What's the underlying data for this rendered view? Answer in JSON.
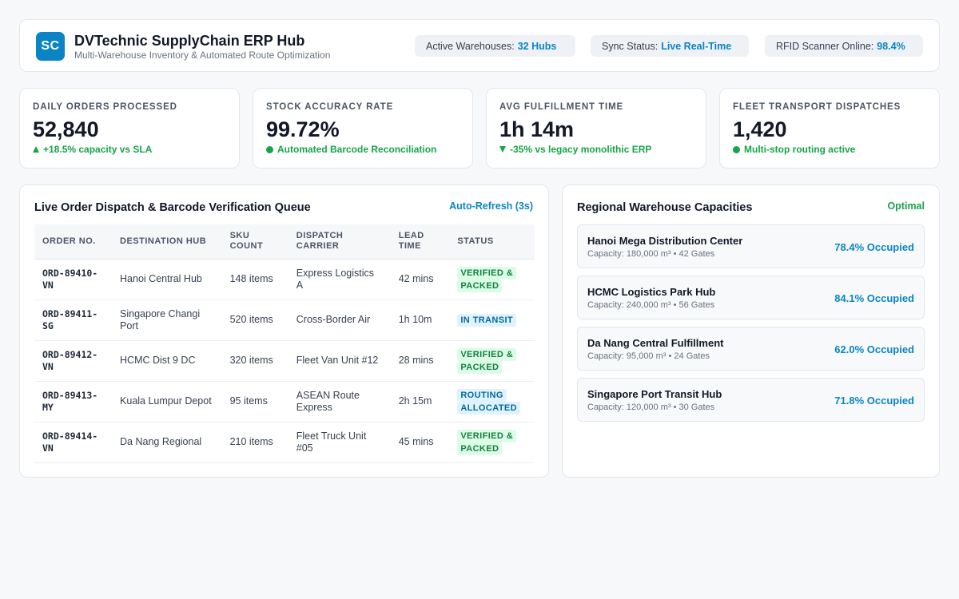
{
  "header": {
    "logo_text": "SC",
    "title": "DVTechnic SupplyChain ERP Hub",
    "subtitle": "Multi-Warehouse Inventory & Automated Route Optimization",
    "pills": [
      {
        "label": "Active Warehouses:",
        "value": "32 Hubs"
      },
      {
        "label": "Sync Status:",
        "value": "Live Real-Time"
      },
      {
        "label": "RFID Scanner Online:",
        "value": "98.4%"
      }
    ]
  },
  "kpis": [
    {
      "label": "Daily Orders Processed",
      "value": "52,840",
      "note": "+18.5% capacity vs SLA",
      "indicator": "up-triangle-icon"
    },
    {
      "label": "Stock Accuracy Rate",
      "value": "99.72%",
      "note": "Automated Barcode Reconciliation",
      "indicator": "status-dot-icon"
    },
    {
      "label": "Avg Fulfillment Time",
      "value": "1h 14m",
      "note": "-35% vs legacy monolithic ERP",
      "indicator": "down-triangle-icon"
    },
    {
      "label": "Fleet Transport Dispatches",
      "value": "1,420",
      "note": "Multi-stop routing active",
      "indicator": "status-dot-icon"
    }
  ],
  "queue": {
    "title": "Live Order Dispatch & Barcode Verification Queue",
    "refresh_label": "Auto-Refresh (3s)",
    "columns": [
      "Order No.",
      "Destination Hub",
      "SKU Count",
      "Dispatch Carrier",
      "Lead Time",
      "Status"
    ],
    "rows": [
      {
        "order": "ORD-89410-VN",
        "hub": "Hanoi Central Hub",
        "sku": "148 items",
        "carrier": "Express Logistics A",
        "lead": "42 mins",
        "status": "VERIFIED & PACKED"
      },
      {
        "order": "ORD-89411-SG",
        "hub": "Singapore Changi Port",
        "sku": "520 items",
        "carrier": "Cross-Border Air",
        "lead": "1h 10m",
        "status": "IN TRANSIT"
      },
      {
        "order": "ORD-89412-VN",
        "hub": "HCMC Dist 9 DC",
        "sku": "320 items",
        "carrier": "Fleet Van Unit #12",
        "lead": "28 mins",
        "status": "VERIFIED & PACKED"
      },
      {
        "order": "ORD-89413-MY",
        "hub": "Kuala Lumpur Depot",
        "sku": "95 items",
        "carrier": "ASEAN Route Express",
        "lead": "2h 15m",
        "status": "ROUTING ALLOCATED"
      },
      {
        "order": "ORD-89414-VN",
        "hub": "Da Nang Regional",
        "sku": "210 items",
        "carrier": "Fleet Truck Unit #05",
        "lead": "45 mins",
        "status": "VERIFIED & PACKED"
      }
    ]
  },
  "warehouses": {
    "title": "Regional Warehouse Capacities",
    "status": "Optimal",
    "items": [
      {
        "name": "Hanoi Mega Distribution Center",
        "capacity": "Capacity: 180,000 m³ • 42 Gates",
        "occupied": "78.4% Occupied"
      },
      {
        "name": "HCMC Logistics Park Hub",
        "capacity": "Capacity: 240,000 m³ • 56 Gates",
        "occupied": "84.1% Occupied"
      },
      {
        "name": "Da Nang Central Fulfillment",
        "capacity": "Capacity: 95,000 m³ • 24 Gates",
        "occupied": "62.0% Occupied"
      },
      {
        "name": "Singapore Port Transit Hub",
        "capacity": "Capacity: 120,000 m³ • 30 Gates",
        "occupied": "71.8% Occupied"
      }
    ]
  },
  "colors": {
    "accent": "#0b84c6",
    "success": "#16a34a",
    "background": "#f7f8fa"
  }
}
